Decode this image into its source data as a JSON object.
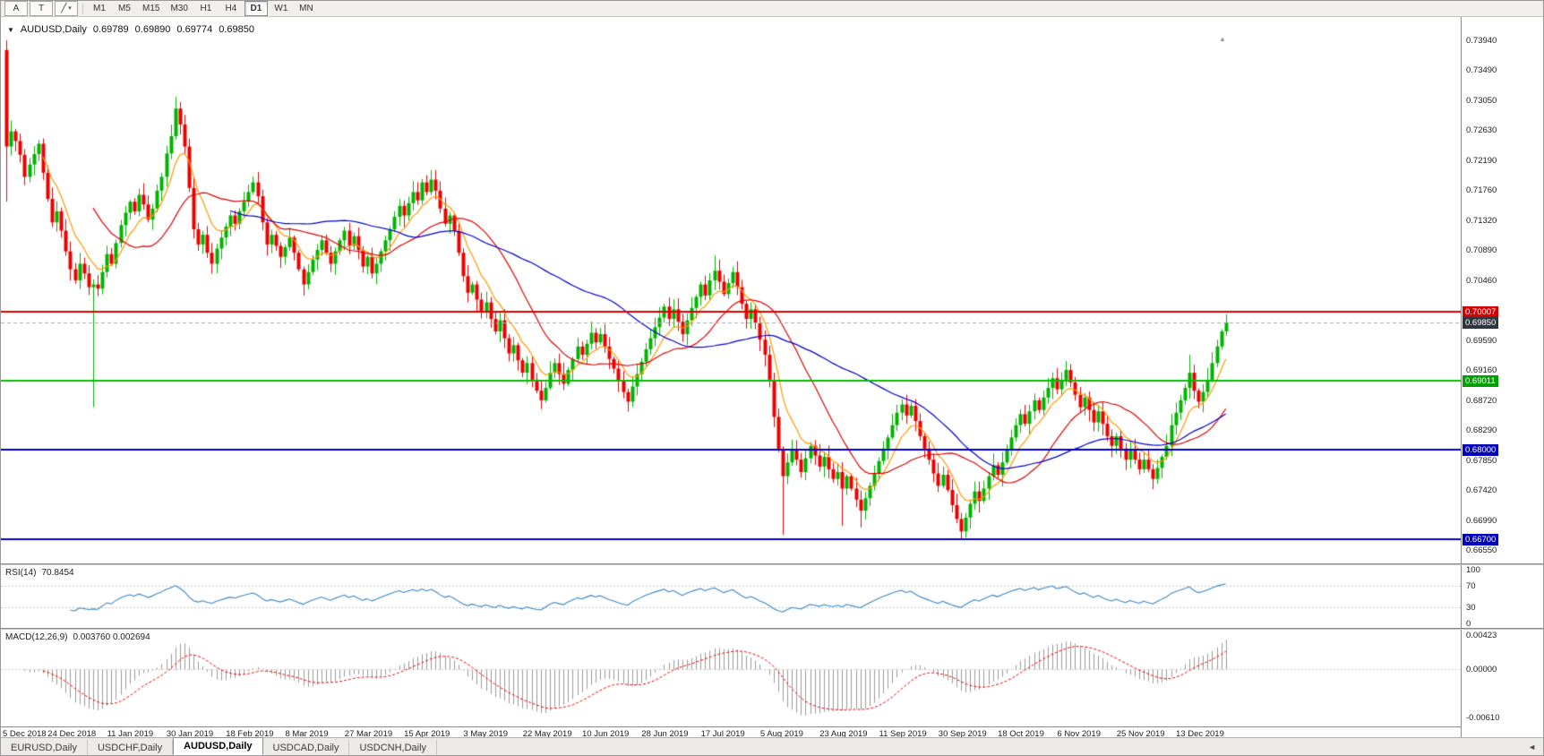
{
  "toolbar": {
    "tool_buttons": [
      {
        "name": "pointer-tool",
        "label": "A"
      },
      {
        "name": "text-tool",
        "label": "T"
      },
      {
        "name": "line-style-tool",
        "label": "╱",
        "caret": "▾"
      }
    ],
    "timeframes": [
      "M1",
      "M5",
      "M15",
      "M30",
      "H1",
      "H4",
      "D1",
      "W1",
      "MN"
    ],
    "active_timeframe": "D1"
  },
  "chart_title": {
    "collapse_icon": "▼",
    "symbol_period": "AUDUSD,Daily",
    "open": "0.69789",
    "high": "0.69890",
    "low": "0.69774",
    "close": "0.69850"
  },
  "shift_marker_icon": "▲",
  "price_axis_labels": [
    "0.73940",
    "0.73490",
    "0.73050",
    "0.72630",
    "0.72190",
    "0.71760",
    "0.71320",
    "0.70890",
    "0.70460",
    "0.70020",
    "0.69590",
    "0.69160",
    "0.68720",
    "0.68290",
    "0.67850",
    "0.67420",
    "0.66990",
    "0.66550"
  ],
  "chart_data": {
    "type": "candlestick",
    "symbol": "AUDUSD",
    "period": "Daily",
    "ylim": [
      0.6655,
      0.7394
    ],
    "up_color": "#00b400",
    "down_color": "#ee0000",
    "x_labels": [
      "5 Dec 2018",
      "24 Dec 2018",
      "11 Jan 2019",
      "30 Jan 2019",
      "18 Feb 2019",
      "8 Mar 2019",
      "27 Mar 2019",
      "15 Apr 2019",
      "3 May 2019",
      "22 May 2019",
      "10 Jun 2019",
      "28 Jun 2019",
      "17 Jul 2019",
      "5 Aug 2019",
      "23 Aug 2019",
      "11 Sep 2019",
      "30 Sep 2019",
      "18 Oct 2019",
      "6 Nov 2019",
      "25 Nov 2019",
      "13 Dec 2019"
    ],
    "candles_per_label": 13,
    "first_open": 0.738,
    "closes": [
      0.724,
      0.7262,
      0.7248,
      0.7228,
      0.7196,
      0.7214,
      0.7229,
      0.7244,
      0.7202,
      0.7164,
      0.713,
      0.7146,
      0.7118,
      0.7088,
      0.7062,
      0.7046,
      0.707,
      0.7056,
      0.7036,
      0.704,
      0.7034,
      0.7058,
      0.7084,
      0.707,
      0.71,
      0.7126,
      0.7144,
      0.716,
      0.7146,
      0.717,
      0.7156,
      0.7134,
      0.715,
      0.7176,
      0.7196,
      0.723,
      0.7255,
      0.7295,
      0.7272,
      0.724,
      0.718,
      0.712,
      0.7098,
      0.7112,
      0.7086,
      0.707,
      0.7092,
      0.7108,
      0.7124,
      0.714,
      0.7128,
      0.7146,
      0.716,
      0.7174,
      0.7188,
      0.7168,
      0.713,
      0.7098,
      0.7112,
      0.7096,
      0.708,
      0.7094,
      0.7108,
      0.7086,
      0.7062,
      0.704,
      0.7058,
      0.7076,
      0.709,
      0.7104,
      0.7086,
      0.707,
      0.7088,
      0.7104,
      0.7118,
      0.7096,
      0.711,
      0.709,
      0.7066,
      0.708,
      0.7056,
      0.707,
      0.7088,
      0.7104,
      0.712,
      0.7138,
      0.7154,
      0.714,
      0.7158,
      0.7174,
      0.7162,
      0.7188,
      0.7174,
      0.7192,
      0.7176,
      0.715,
      0.7128,
      0.714,
      0.7118,
      0.7086,
      0.7052,
      0.7028,
      0.704,
      0.7018,
      0.7,
      0.7014,
      0.699,
      0.6972,
      0.6988,
      0.6962,
      0.694,
      0.6952,
      0.693,
      0.6912,
      0.6926,
      0.6902,
      0.6886,
      0.6872,
      0.689,
      0.6912,
      0.6926,
      0.691,
      0.6896,
      0.6916,
      0.6932,
      0.695,
      0.6938,
      0.6954,
      0.697,
      0.6956,
      0.6968,
      0.695,
      0.6932,
      0.6918,
      0.69,
      0.6884,
      0.687,
      0.6892,
      0.691,
      0.6928,
      0.6946,
      0.6962,
      0.6978,
      0.6992,
      0.7008,
      0.699,
      0.7004,
      0.6986,
      0.6968,
      0.6988,
      0.7006,
      0.7022,
      0.704,
      0.7024,
      0.7046,
      0.706,
      0.7044,
      0.7026,
      0.7042,
      0.7058,
      0.7036,
      0.7012,
      0.699,
      0.7004,
      0.6984,
      0.696,
      0.6938,
      0.6902,
      0.6848,
      0.6802,
      0.6762,
      0.6782,
      0.68,
      0.6786,
      0.6768,
      0.6788,
      0.6806,
      0.6792,
      0.6776,
      0.679,
      0.6772,
      0.6758,
      0.6768,
      0.6744,
      0.6762,
      0.6744,
      0.6728,
      0.6712,
      0.673,
      0.6748,
      0.6766,
      0.6784,
      0.6802,
      0.6818,
      0.6836,
      0.6854,
      0.6866,
      0.685,
      0.6864,
      0.6842,
      0.682,
      0.6802,
      0.6786,
      0.6766,
      0.6748,
      0.6764,
      0.6742,
      0.672,
      0.67,
      0.6682,
      0.6702,
      0.6722,
      0.674,
      0.6726,
      0.6744,
      0.6762,
      0.6778,
      0.6764,
      0.6782,
      0.68,
      0.6818,
      0.6836,
      0.6852,
      0.6838,
      0.6856,
      0.6872,
      0.6858,
      0.6876,
      0.689,
      0.6904,
      0.6888,
      0.6902,
      0.6916,
      0.6898,
      0.688,
      0.6862,
      0.6876,
      0.6858,
      0.684,
      0.6856,
      0.6838,
      0.682,
      0.6806,
      0.682,
      0.6802,
      0.6786,
      0.68,
      0.6786,
      0.6772,
      0.6786,
      0.6772,
      0.6758,
      0.6774,
      0.679,
      0.6806,
      0.6836,
      0.6854,
      0.6872,
      0.689,
      0.6912,
      0.6886,
      0.687,
      0.6884,
      0.6902,
      0.6926,
      0.695,
      0.6972,
      0.6985
    ],
    "wick_overrides": {
      "0": {
        "high": 0.7394,
        "low": 0.716
      },
      "19": {
        "low": 0.6862
      },
      "37": {
        "high": 0.7312
      },
      "93": {
        "high": 0.7206
      },
      "155": {
        "high": 0.7082
      },
      "170": {
        "low": 0.6677
      },
      "183": {
        "low": 0.669
      },
      "187": {
        "low": 0.6688
      },
      "209": {
        "low": 0.667
      },
      "259": {
        "high": 0.6938
      },
      "267": {
        "high": 0.6997
      }
    },
    "overlays": [
      {
        "name": "fast-ma",
        "type": "ema",
        "period": 8,
        "color": "#ff9900"
      },
      {
        "name": "mid-ma",
        "type": "sma",
        "period": 20,
        "color": "#e00000"
      },
      {
        "name": "slow-ma",
        "type": "sma",
        "period": 50,
        "color": "#0000cc"
      }
    ],
    "levels": [
      {
        "value": 0.70007,
        "label": "0.70007",
        "color": "#e00000",
        "tag_bg": "#d40000"
      },
      {
        "value": 0.69011,
        "label": "0.69011",
        "color": "#00c000",
        "tag_bg": "#00a000"
      },
      {
        "value": 0.68,
        "label": "0.68000",
        "color": "#0000c8",
        "tag_bg": "#0000bb"
      },
      {
        "value": 0.667,
        "label": "0.66700",
        "color": "#0000c8",
        "tag_bg": "#0000bb"
      }
    ],
    "current_price": {
      "value": 0.6985,
      "label": "0.69850",
      "tag_bg": "#2f3640",
      "line_color": "#a8a8a8"
    },
    "rsi": {
      "label": "RSI(14)",
      "value": "70.8454",
      "period": 14,
      "color": "#3a87c8",
      "levels": [
        70,
        30
      ],
      "axis_labels": [
        "100",
        "70",
        "30",
        "0"
      ],
      "ylim": [
        0,
        100
      ]
    },
    "macd": {
      "label": "MACD(12,26,9)",
      "values": "0.003760 0.002694",
      "fast": 12,
      "slow": 26,
      "signal": 9,
      "hist_color": "#9a9a9a",
      "signal_color": "#ee0000",
      "axis_labels": [
        "0.00423",
        "0.00000",
        "-0.00610"
      ],
      "ylim": [
        -0.0061,
        0.00423
      ]
    }
  },
  "tabs": {
    "items": [
      {
        "label": "EURUSD,Daily",
        "active": false
      },
      {
        "label": "USDCHF,Daily",
        "active": false
      },
      {
        "label": "AUDUSD,Daily",
        "active": true
      },
      {
        "label": "USDCAD,Daily",
        "active": false
      },
      {
        "label": "USDCNH,Daily",
        "active": false
      }
    ],
    "scroll_left_icon": "◄"
  }
}
